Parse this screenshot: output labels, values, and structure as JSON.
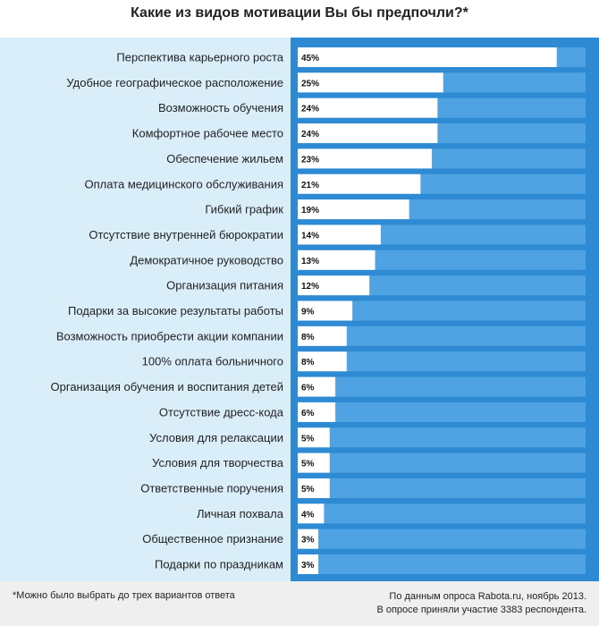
{
  "chart_data": {
    "type": "bar",
    "orientation": "horizontal",
    "title": "Какие из видов мотивации Вы бы предпочли?*",
    "categories": [
      "Перспектива карьерного роста",
      "Удобное географическое расположение",
      "Возможность обучения",
      "Комфортное рабочее место",
      "Обеспечение жильем",
      "Оплата медицинского обслуживания",
      "Гибкий график",
      "Отсутствие внутренней бюрократии",
      "Демократичное руководство",
      "Организация питания",
      "Подарки за высокие результаты работы",
      "Возможность приобрести акции компании",
      "100% оплата больничного",
      "Организация обучения и воспитания детей",
      "Отсутствие дресс-кода",
      "Условия для релаксации",
      "Условия для творчества",
      "Ответственные поручения",
      "Личная похвала",
      "Общественное признание",
      "Подарки по праздникам"
    ],
    "values": [
      45,
      25,
      24,
      24,
      23,
      21,
      19,
      14,
      13,
      12,
      9,
      8,
      8,
      6,
      6,
      5,
      5,
      5,
      4,
      3,
      3
    ],
    "value_labels": [
      "45%",
      "25%",
      "24%",
      "24%",
      "23%",
      "21%",
      "19%",
      "14%",
      "13%",
      "12%",
      "9%",
      "8%",
      "8%",
      "6%",
      "6%",
      "5%",
      "5%",
      "5%",
      "4%",
      "3%",
      "3%"
    ],
    "unit": "%",
    "xlim": [
      0,
      50
    ],
    "grid": false,
    "legend": "none",
    "colors": {
      "bar": "#ffffff",
      "track": "#4fa3e3",
      "panel_right": "#2e8bd3",
      "panel_left": "#daeefa",
      "footer": "#efefef"
    }
  },
  "footer": {
    "footnote": "*Можно было выбрать до трех вариантов ответа",
    "source_line1": "По данным опроса Rabota.ru, ноябрь 2013.",
    "source_line2": "В опросе приняли участие 3383 респондента."
  }
}
